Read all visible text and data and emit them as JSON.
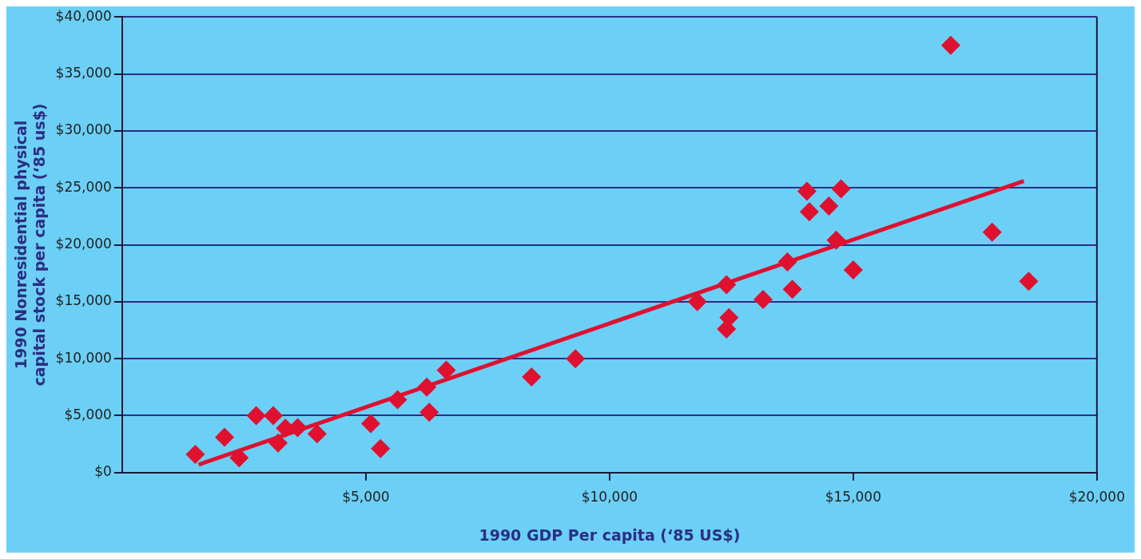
{
  "chart_data": {
    "type": "scatter",
    "xlabel": "1990 GDP Per capita (‘85 US$)",
    "ylabel": "1990 Nonresidential physical capital stock per capita (‘85 us$)",
    "xlim": [
      0,
      20000
    ],
    "ylim": [
      0,
      40000
    ],
    "xticks": [
      {
        "value": 5000,
        "label": "$5,000"
      },
      {
        "value": 10000,
        "label": "$10,000"
      },
      {
        "value": 15000,
        "label": "$15,000"
      },
      {
        "value": 20000,
        "label": "$20,000"
      }
    ],
    "yticks": [
      {
        "value": 0,
        "label": "$0"
      },
      {
        "value": 5000,
        "label": "$5,000"
      },
      {
        "value": 10000,
        "label": "$10,000"
      },
      {
        "value": 15000,
        "label": "$15,000"
      },
      {
        "value": 20000,
        "label": "$20,000"
      },
      {
        "value": 25000,
        "label": "$25,000"
      },
      {
        "value": 30000,
        "label": "$30,000"
      },
      {
        "value": 35000,
        "label": "$35,000"
      },
      {
        "value": 40000,
        "label": "$40,000"
      }
    ],
    "grid": "y",
    "legend": false,
    "marker": "diamond",
    "series": [
      {
        "color": "#e0102f",
        "x": [
          1500,
          2100,
          2400,
          2750,
          3100,
          3200,
          3350,
          3600,
          4000,
          5100,
          5300,
          5650,
          6250,
          6300,
          6650,
          8400,
          9300,
          11800,
          12400,
          12450,
          12400,
          13150,
          13650,
          13750,
          14050,
          14100,
          14500,
          14750,
          14650,
          15000,
          17000,
          17850,
          18600
        ],
        "values": [
          1600,
          3100,
          1300,
          5000,
          5000,
          2600,
          3900,
          3950,
          3400,
          4300,
          2100,
          6400,
          7500,
          5300,
          9000,
          8400,
          10000,
          15000,
          16500,
          13600,
          12600,
          15200,
          18500,
          16100,
          24700,
          22900,
          23400,
          24900,
          20400,
          17800,
          37500,
          21100,
          16800
        ]
      },
      {
        "type": "line",
        "color": "#e0102f",
        "marker": "none",
        "x": [
          1570,
          18500
        ],
        "values": [
          700,
          25600
        ]
      }
    ]
  }
}
